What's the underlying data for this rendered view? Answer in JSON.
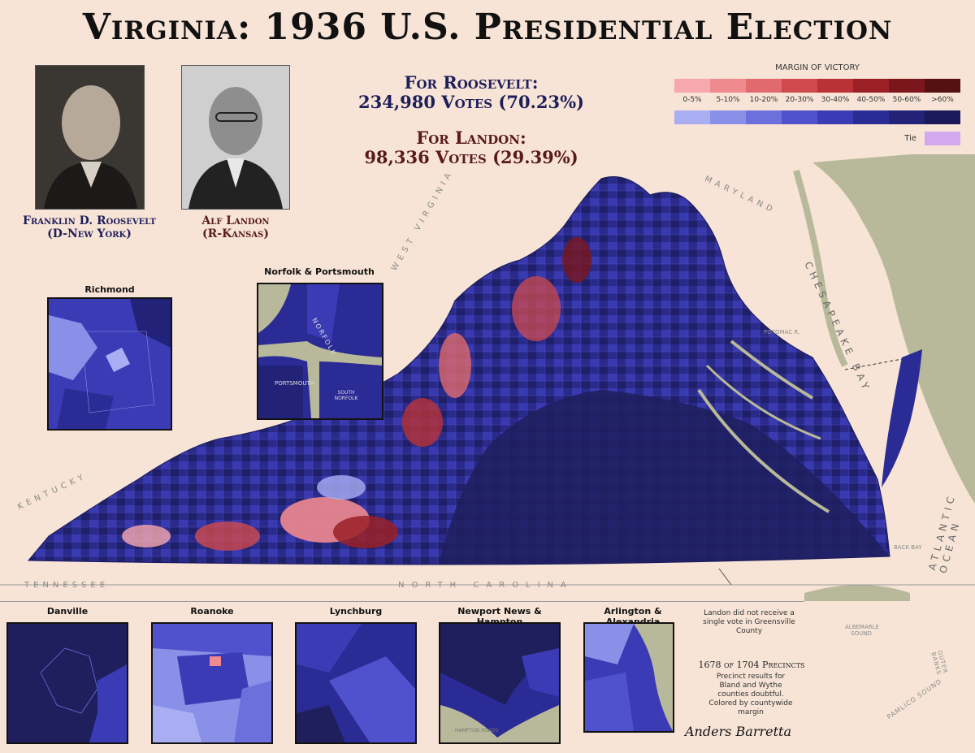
{
  "title": "Virginia: 1936 U.S. Presidential Election",
  "candidates": [
    {
      "name": "Franklin D. Roosevelt",
      "party": "(D-New York)",
      "votes_label": "For Roosevelt:",
      "votes_text": "234,980 Votes (70.23%)",
      "color": "#1e1e5a"
    },
    {
      "name": "Alf Landon",
      "party": "(R-Kansas)",
      "votes_label": "For Landon:",
      "votes_text": "98,336 Votes (29.39%)",
      "color": "#5a1a1a"
    }
  ],
  "legend": {
    "title": "Margin of Victory",
    "labels": [
      "0-5%",
      "5-10%",
      "10-20%",
      "20-30%",
      "30-40%",
      "40-50%",
      "50-60%",
      ">60%"
    ],
    "republican_colors": [
      "#f7a7ae",
      "#ef8a8f",
      "#e06a6d",
      "#cf4a4d",
      "#b83236",
      "#9a2026",
      "#7b161c",
      "#551012"
    ],
    "democratic_colors": [
      "#a9aef2",
      "#8a8fe8",
      "#6b70dc",
      "#4f52cc",
      "#3b3cb5",
      "#2b2b95",
      "#222278",
      "#1a1a5a"
    ],
    "tie_label": "Tie",
    "tie_color": "#d4a8ee"
  },
  "geo_labels": {
    "west_virginia": "WEST VIRGINIA",
    "maryland": "MARYLAND",
    "kentucky": "KENTUCKY",
    "tennessee": "TENNESSEE",
    "north_carolina": "NORTH CAROLINA",
    "chesapeake_bay": "CHESAPEAKE BAY",
    "atlantic_ocean": "ATLANTIC OCEAN",
    "potomac": "POTOMAC R.",
    "back_bay": "BACK BAY",
    "albemarle": "ALBEMARLE SOUND",
    "pamlico": "PAMLICO SOUND",
    "outer_banks": "OUTER BANKS"
  },
  "insets": {
    "richmond": "Richmond",
    "norfolk": "Norfolk & Portsmouth",
    "danville": "Danville",
    "roanoke": "Roanoke",
    "lynchburg": "Lynchburg",
    "newport": "Newport News & Hampton",
    "arlington": "Arlington & Alexandria"
  },
  "inset_labels": {
    "norfolk": "NORFOLK",
    "portsmouth": "PORTSMOUTH",
    "south_norfolk": "SOUTH NORFOLK",
    "hampton_roads": "HAMPTON ROADS"
  },
  "notes": {
    "greensville": "Landon did not receive a single vote in Greensville County",
    "precincts_count": "1678 of 1704 Precincts",
    "precincts_note": "Precinct results for Bland and Wythe counties doubtful. Colored by countywide margin"
  },
  "signature": "Anders Barretta"
}
